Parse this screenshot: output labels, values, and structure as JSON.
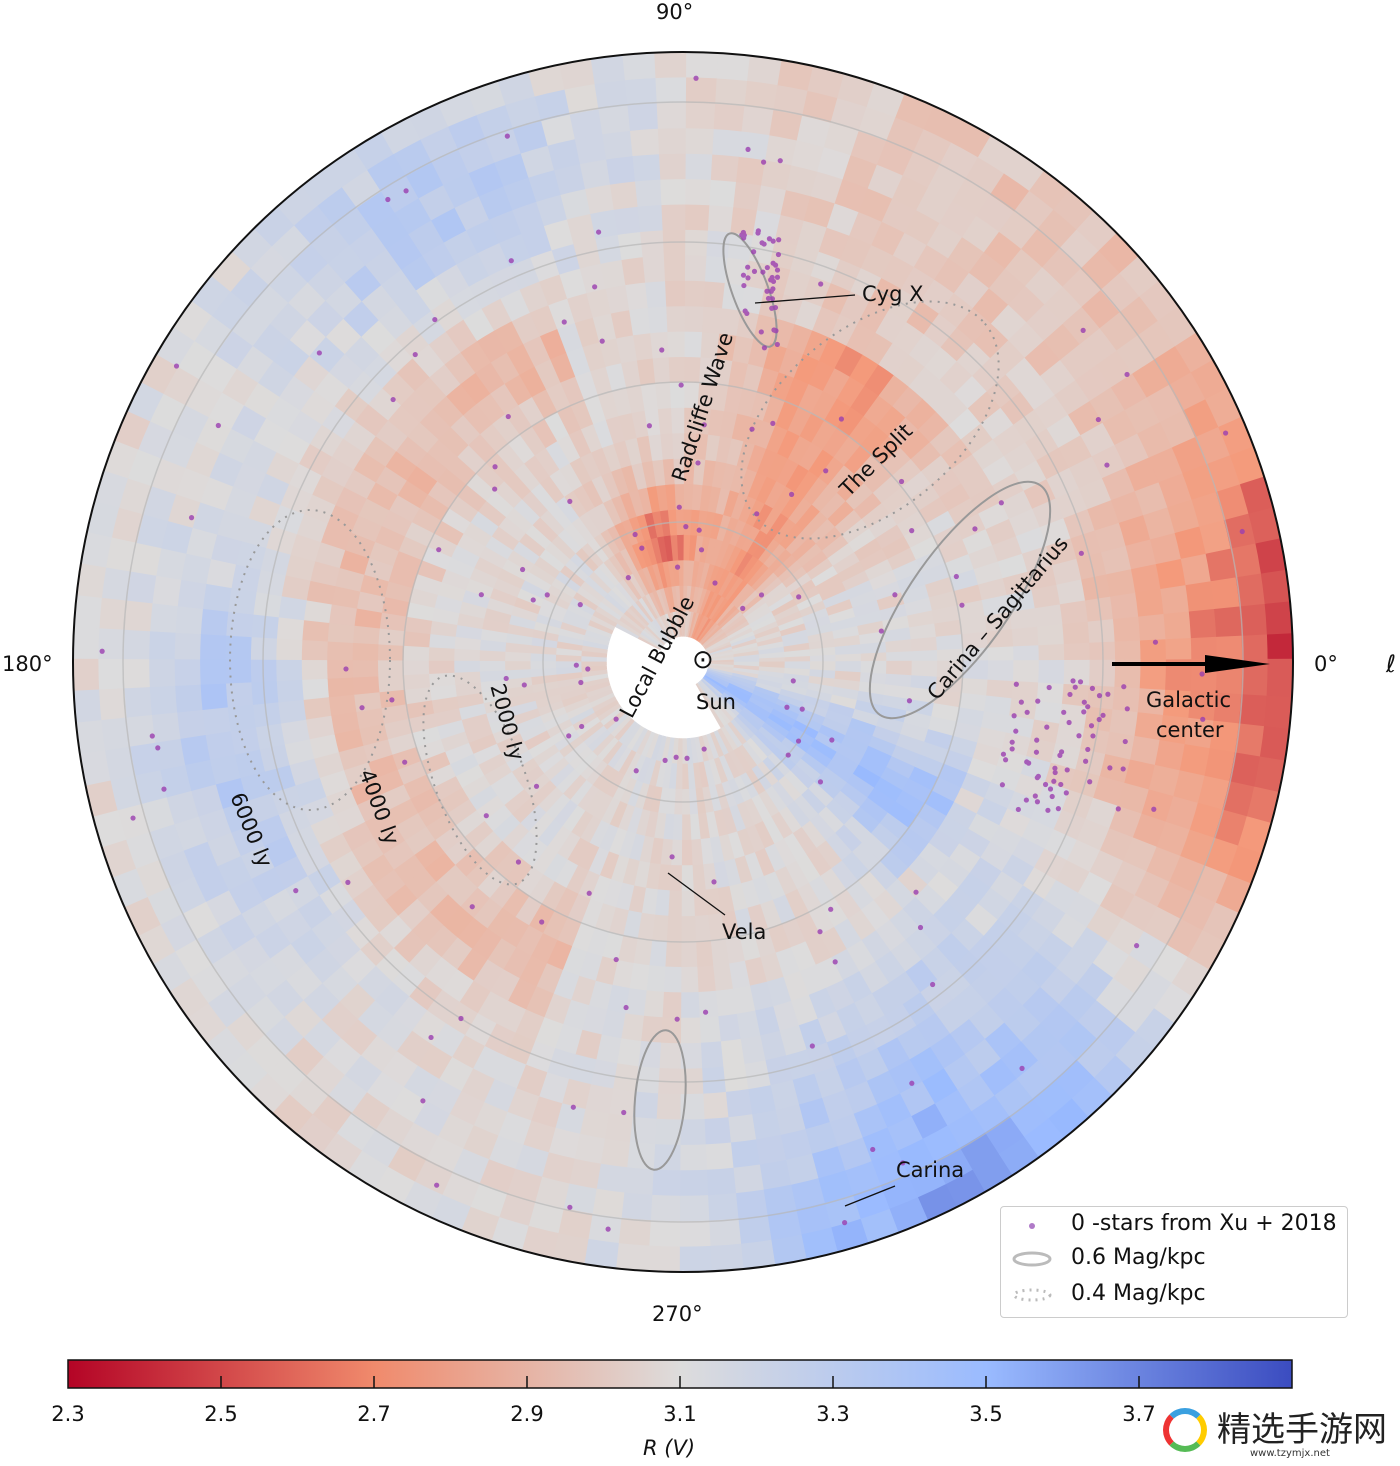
{
  "chart_data": {
    "type": "heatmap",
    "projection": "polar (galactic longitude, distance from Sun)",
    "angular_ticks": [
      "0°",
      "90°",
      "180°",
      "270°"
    ],
    "angular_axis_label": "ℓ",
    "radial_ticks": [
      "2000 ly",
      "4000 ly",
      "6000 ly"
    ],
    "colorbar": {
      "label": "R (V)",
      "range": [
        2.3,
        3.9
      ],
      "ticks": [
        "2.3",
        "2.5",
        "2.7",
        "2.9",
        "3.1",
        "3.3",
        "3.5",
        "3.7"
      ],
      "colormap": [
        "#b40426",
        "#f49a7b",
        "#dddcdc",
        "#9abbff",
        "#3b4cc0"
      ]
    },
    "annotations": {
      "cyg_x": "Cyg X",
      "radcliffe": "Radcliffe Wave",
      "split": "The Split",
      "carina_sag": "Carina – Sagittarius",
      "local_bubble": "Local Bubble",
      "sun": "Sun",
      "sun_symbol": "⊙",
      "vela": "Vela",
      "carina": "Carina",
      "galactic_center_1": "Galactic",
      "galactic_center_2": "center"
    },
    "legend": {
      "placement": "bottom-right",
      "items": [
        {
          "label": "0 -stars from Xu + 2018",
          "marker": "dot",
          "color": "#9b59b6"
        },
        {
          "label": "0.6 Mag/kpc",
          "marker": "solid-contour",
          "color": "#aaaaaa"
        },
        {
          "label": "0.4 Mag/kpc",
          "marker": "dotted-contour",
          "color": "#aaaaaa"
        }
      ]
    }
  },
  "watermark": {
    "text": "精选手游网",
    "url": "www.tzymjx.net"
  }
}
